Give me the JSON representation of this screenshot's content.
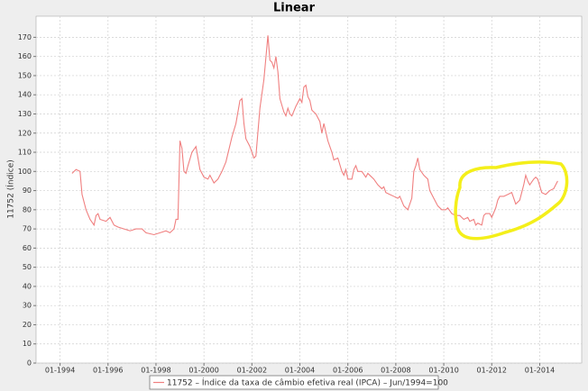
{
  "chart_data": {
    "type": "line",
    "title": "Linear",
    "y_label": "11752 (Índice)",
    "x": [
      "07-1994",
      "08-1994",
      "09-1994",
      "11-1994",
      "12-1994",
      "02-1995",
      "04-1995",
      "06-1995",
      "07-1995",
      "08-1995",
      "09-1995",
      "12-1995",
      "02-1996",
      "04-1996",
      "06-1996",
      "09-1996",
      "12-1996",
      "03-1997",
      "06-1997",
      "08-1997",
      "12-1997",
      "03-1998",
      "06-1998",
      "08-1998",
      "10-1998",
      "11-1998",
      "12-1998",
      "01-1999",
      "02-1999",
      "03-1999",
      "04-1999",
      "05-1999",
      "07-1999",
      "09-1999",
      "10-1999",
      "11-1999",
      "01-2000",
      "03-2000",
      "04-2000",
      "06-2000",
      "08-2000",
      "10-2000",
      "12-2000",
      "03-2001",
      "05-2001",
      "07-2001",
      "08-2001",
      "09-2001",
      "10-2001",
      "12-2001",
      "02-2002",
      "03-2002",
      "05-2002",
      "07-2002",
      "09-2002",
      "10-2002",
      "11-2002",
      "12-2002",
      "01-2003",
      "02-2003",
      "03-2003",
      "05-2003",
      "06-2003",
      "07-2003",
      "08-2003",
      "09-2003",
      "11-2003",
      "01-2004",
      "02-2004",
      "03-2004",
      "04-2004",
      "05-2004",
      "06-2004",
      "07-2004",
      "09-2004",
      "11-2004",
      "12-2004",
      "01-2005",
      "03-2005",
      "05-2005",
      "06-2005",
      "08-2005",
      "10-2005",
      "11-2005",
      "12-2005",
      "01-2006",
      "03-2006",
      "04-2006",
      "05-2006",
      "06-2006",
      "08-2006",
      "10-2006",
      "11-2006",
      "12-2006",
      "02-2007",
      "04-2007",
      "06-2007",
      "07-2007",
      "08-2007",
      "10-2007",
      "12-2007",
      "02-2008",
      "03-2008",
      "05-2008",
      "07-2008",
      "09-2008",
      "10-2008",
      "11-2008",
      "12-2008",
      "01-2009",
      "03-2009",
      "05-2009",
      "06-2009",
      "08-2009",
      "10-2009",
      "12-2009",
      "02-2010",
      "03-2010",
      "05-2010",
      "07-2010",
      "09-2010",
      "11-2010",
      "01-2011",
      "02-2011",
      "04-2011",
      "05-2011",
      "06-2011",
      "08-2011",
      "09-2011",
      "10-2011",
      "12-2011",
      "01-2012",
      "03-2012",
      "04-2012",
      "05-2012",
      "07-2012",
      "09-2012",
      "11-2012",
      "12-2012",
      "01-2013",
      "03-2013",
      "05-2013",
      "06-2013",
      "07-2013",
      "08-2013",
      "10-2013",
      "11-2013",
      "12-2013",
      "02-2014",
      "04-2014",
      "06-2014",
      "08-2014",
      "10-2014"
    ],
    "series": [
      {
        "name": "11752 – Índice da taxa de câmbio efetiva real (IPCA) – Jun/1994=100",
        "color": "#f08080",
        "values": [
          99,
          100,
          101,
          100,
          88,
          80,
          75,
          72,
          77,
          78,
          75,
          74,
          76,
          72,
          71,
          70,
          69,
          70,
          70,
          68,
          67,
          68,
          69,
          68,
          70,
          75,
          75,
          116,
          112,
          100,
          99,
          103,
          110,
          113,
          107,
          101,
          97,
          96,
          98,
          94,
          96,
          100,
          105,
          118,
          125,
          137,
          138,
          125,
          117,
          113,
          107,
          108,
          133,
          148,
          171,
          158,
          157,
          154,
          160,
          152,
          138,
          131,
          129,
          133,
          130,
          129,
          134,
          138,
          136,
          144,
          145,
          139,
          137,
          132,
          130,
          126,
          120,
          125,
          116,
          110,
          106,
          107,
          100,
          98,
          101,
          96,
          96,
          101,
          103,
          100,
          100,
          97,
          99,
          98,
          96,
          93,
          91,
          92,
          89,
          88,
          87,
          86,
          87,
          82,
          80,
          86,
          100,
          103,
          107,
          101,
          98,
          96,
          90,
          86,
          82,
          80,
          80,
          81,
          78,
          77,
          77,
          75,
          76,
          74,
          75,
          72,
          73,
          72,
          77,
          78,
          78,
          76,
          81,
          85,
          87,
          87,
          88,
          89,
          86,
          83,
          85,
          93,
          98,
          95,
          93,
          96,
          97,
          96,
          89,
          88,
          90,
          91,
          95
        ]
      }
    ],
    "xlim": [
      "01-1993",
      "10-2015"
    ],
    "xticks": [
      "01-1994",
      "01-1996",
      "01-1998",
      "01-2000",
      "01-2002",
      "01-2004",
      "01-2006",
      "01-2008",
      "01-2010",
      "01-2012",
      "01-2014"
    ],
    "ylim": [
      0,
      181
    ],
    "yticks": [
      0,
      10,
      20,
      30,
      40,
      50,
      60,
      70,
      80,
      90,
      100,
      110,
      120,
      130,
      140,
      150,
      160,
      170
    ],
    "grid": true
  }
}
